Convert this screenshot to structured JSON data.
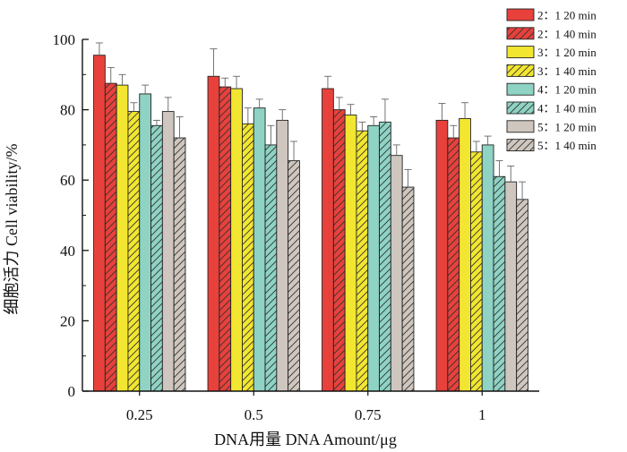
{
  "chart_data": {
    "type": "bar",
    "title": "",
    "xlabel": "DNA用量 DNA Amount/μg",
    "ylabel": "细胞活力 Cell viability/%",
    "categories": [
      "0.25",
      "0.5",
      "0.75",
      "1"
    ],
    "ylim": [
      0,
      100
    ],
    "yticks": [
      "0",
      "20",
      "40",
      "60",
      "80",
      "100"
    ],
    "grid": false,
    "legend_position": "top-right",
    "series": [
      {
        "name": "2：1  20 min",
        "color": "#e8413c",
        "hatched": false,
        "values": [
          95.5,
          89.5,
          86,
          77
        ],
        "errors": [
          3.5,
          7.8,
          3.5,
          4.8
        ]
      },
      {
        "name": "2：1  40 min",
        "color": "#e8413c",
        "hatched": true,
        "values": [
          87.5,
          86.5,
          80,
          72
        ],
        "errors": [
          4.5,
          2.5,
          3.5,
          3.5
        ]
      },
      {
        "name": "3：1  20 min",
        "color": "#f2e630",
        "hatched": false,
        "values": [
          87,
          86,
          78.5,
          77.5
        ],
        "errors": [
          3,
          3.5,
          3,
          4.5
        ]
      },
      {
        "name": "3：1  40 min",
        "color": "#f2e630",
        "hatched": true,
        "values": [
          79.5,
          76,
          74,
          68
        ],
        "errors": [
          2.5,
          4.5,
          2.5,
          3
        ]
      },
      {
        "name": "4：1  20 min",
        "color": "#8ed3c4",
        "hatched": false,
        "values": [
          84.5,
          80.5,
          75.5,
          70
        ],
        "errors": [
          2.5,
          2.5,
          2.5,
          2.5
        ]
      },
      {
        "name": "4：1  40 min",
        "color": "#8ed3c4",
        "hatched": true,
        "values": [
          75.5,
          70,
          76.5,
          61
        ],
        "errors": [
          1.5,
          5.5,
          6.5,
          4.5
        ]
      },
      {
        "name": "5：1  20 min",
        "color": "#cfc7bf",
        "hatched": false,
        "values": [
          79.5,
          77,
          67,
          59.5
        ],
        "errors": [
          4,
          3,
          3,
          4.5
        ]
      },
      {
        "name": "5：1  40 min",
        "color": "#cfc7bf",
        "hatched": true,
        "values": [
          72,
          65.5,
          58,
          54.5
        ],
        "errors": [
          6,
          5.5,
          5,
          5
        ]
      }
    ]
  }
}
